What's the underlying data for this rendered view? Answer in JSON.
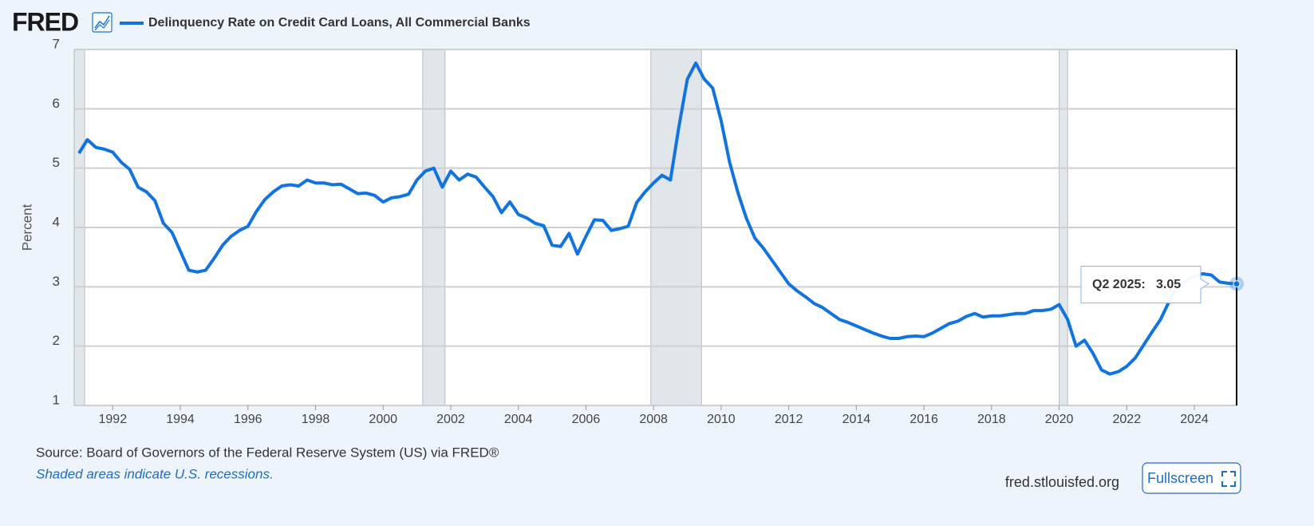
{
  "chart_data": {
    "type": "line",
    "logo": "FRED",
    "y_label": "Percent",
    "source": "Source: Board of Governors of the Federal Reserve System (US) via FRED®",
    "note": "Shaded areas indicate U.S. recessions.",
    "site": "fred.stlouisfed.org",
    "button": "Fullscreen",
    "tooltip_label": "Q2 2025:",
    "xlim": [
      1990.86,
      2025.25
    ],
    "ylim": [
      1,
      7
    ],
    "xticks": [
      1992,
      1994,
      1996,
      1998,
      2000,
      2002,
      2004,
      2006,
      2008,
      2010,
      2012,
      2014,
      2016,
      2018,
      2020,
      2022,
      2024
    ],
    "yticks": [
      1,
      2,
      3,
      4,
      5,
      6,
      7
    ],
    "grid": true,
    "recessions": [
      [
        1990.58,
        1991.17
      ],
      [
        2001.17,
        2001.83
      ],
      [
        2007.92,
        2009.42
      ],
      [
        2020.0,
        2020.25
      ]
    ],
    "x": [
      1991,
      1991.25,
      1991.5,
      1991.75,
      1992,
      1992.25,
      1992.5,
      1992.75,
      1993,
      1993.25,
      1993.5,
      1993.75,
      1994,
      1994.25,
      1994.5,
      1994.75,
      1995,
      1995.25,
      1995.5,
      1995.75,
      1996,
      1996.25,
      1996.5,
      1996.75,
      1997,
      1997.25,
      1997.5,
      1997.75,
      1998,
      1998.25,
      1998.5,
      1998.75,
      1999,
      1999.25,
      1999.5,
      1999.75,
      2000,
      2000.25,
      2000.5,
      2000.75,
      2001,
      2001.25,
      2001.5,
      2001.75,
      2002,
      2002.25,
      2002.5,
      2002.75,
      2003,
      2003.25,
      2003.5,
      2003.75,
      2004,
      2004.25,
      2004.5,
      2004.75,
      2005,
      2005.25,
      2005.5,
      2005.75,
      2006,
      2006.25,
      2006.5,
      2006.75,
      2007,
      2007.25,
      2007.5,
      2007.75,
      2008,
      2008.25,
      2008.5,
      2008.75,
      2009,
      2009.25,
      2009.5,
      2009.75,
      2010,
      2010.25,
      2010.5,
      2010.75,
      2011,
      2011.25,
      2011.5,
      2011.75,
      2012,
      2012.25,
      2012.5,
      2012.75,
      2013,
      2013.25,
      2013.5,
      2013.75,
      2014,
      2014.25,
      2014.5,
      2014.75,
      2015,
      2015.25,
      2015.5,
      2015.75,
      2016,
      2016.25,
      2016.5,
      2016.75,
      2017,
      2017.25,
      2017.5,
      2017.75,
      2018,
      2018.25,
      2018.5,
      2018.75,
      2019,
      2019.25,
      2019.5,
      2019.75,
      2020,
      2020.25,
      2020.5,
      2020.75,
      2021,
      2021.25,
      2021.5,
      2021.75,
      2022,
      2022.25,
      2022.5,
      2022.75,
      2023,
      2023.25,
      2023.5,
      2023.75,
      2024,
      2024.25,
      2024.5,
      2024.75,
      2025,
      2025.25
    ],
    "series": [
      {
        "name": "Delinquency Rate on Credit Card Loans, All Commercial Banks",
        "color": "#1173e0",
        "values": [
          5.25,
          5.48,
          5.35,
          5.32,
          5.27,
          5.1,
          4.98,
          4.68,
          4.6,
          4.45,
          4.07,
          3.92,
          3.6,
          3.28,
          3.25,
          3.28,
          3.48,
          3.7,
          3.85,
          3.95,
          4.02,
          4.27,
          4.47,
          4.6,
          4.7,
          4.72,
          4.7,
          4.8,
          4.75,
          4.75,
          4.72,
          4.73,
          4.65,
          4.57,
          4.58,
          4.54,
          4.43,
          4.5,
          4.52,
          4.56,
          4.8,
          4.95,
          5.0,
          4.68,
          4.95,
          4.8,
          4.9,
          4.85,
          4.68,
          4.52,
          4.25,
          4.43,
          4.22,
          4.16,
          4.07,
          4.03,
          3.7,
          3.68,
          3.9,
          3.55,
          3.85,
          4.13,
          4.12,
          3.95,
          3.98,
          4.02,
          4.42,
          4.6,
          4.75,
          4.88,
          4.8,
          5.7,
          6.5,
          6.77,
          6.5,
          6.35,
          5.8,
          5.1,
          4.58,
          4.15,
          3.82,
          3.65,
          3.45,
          3.25,
          3.05,
          2.93,
          2.83,
          2.72,
          2.65,
          2.55,
          2.45,
          2.4,
          2.34,
          2.28,
          2.22,
          2.17,
          2.13,
          2.13,
          2.16,
          2.17,
          2.16,
          2.22,
          2.3,
          2.38,
          2.42,
          2.5,
          2.55,
          2.49,
          2.51,
          2.51,
          2.53,
          2.55,
          2.55,
          2.6,
          2.6,
          2.62,
          2.7,
          2.45,
          2.0,
          2.1,
          1.88,
          1.6,
          1.53,
          1.57,
          1.66,
          1.8,
          2.02,
          2.24,
          2.45,
          2.75,
          2.99,
          3.1,
          3.18,
          3.22,
          3.2,
          3.08,
          3.06,
          3.05
        ]
      }
    ]
  }
}
